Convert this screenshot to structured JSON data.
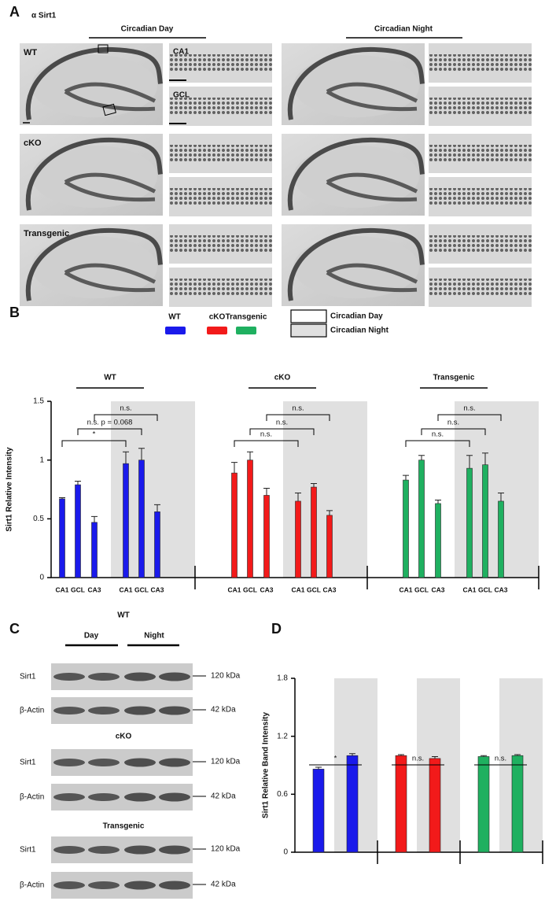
{
  "panel_labels": [
    "A",
    "B",
    "C",
    "D"
  ],
  "panel_a": {
    "stain": "α Sirt1",
    "conditions": [
      "Circadian Day",
      "Circadian Night"
    ],
    "genotypes": [
      "WT",
      "cKO",
      "Transgenic"
    ],
    "regions": [
      "CA1",
      "GCL"
    ]
  },
  "panel_c": {
    "conditions": [
      "Day",
      "Night"
    ],
    "groups": [
      {
        "genotype": "WT",
        "blots": [
          {
            "protein": "Sirt1",
            "size": "120 kDa"
          },
          {
            "protein": "β-Actin",
            "size": "42 kDa"
          }
        ]
      },
      {
        "genotype": "cKO",
        "blots": [
          {
            "protein": "Sirt1",
            "size": "120 kDa"
          },
          {
            "protein": "β-Actin",
            "size": "42 kDa"
          }
        ]
      },
      {
        "genotype": "Transgenic",
        "blots": [
          {
            "protein": "Sirt1",
            "size": "120 kDa"
          },
          {
            "protein": "β-Actin",
            "size": "42 kDa"
          }
        ]
      }
    ]
  },
  "chart_data": [
    {
      "type": "bar",
      "ylabel": "Sirt1 Relative Intensity",
      "categories": [
        "CA1",
        "GCL",
        "CA3",
        "CA1",
        "GCL",
        "CA3"
      ],
      "shading_legend": [
        "Circadian Day",
        "Circadian Night"
      ],
      "series": [
        {
          "name": "WT",
          "color": "#1a1aeb",
          "values": [
            0.67,
            0.79,
            0.47,
            0.97,
            1.0,
            0.56
          ],
          "errors": [
            0.01,
            0.03,
            0.05,
            0.1,
            0.1,
            0.06
          ],
          "annotations": [
            "*",
            "n.s. p = 0.068",
            "n.s."
          ]
        },
        {
          "name": "cKO",
          "color": "#f21a1a",
          "values": [
            0.89,
            1.0,
            0.7,
            0.65,
            0.77,
            0.53
          ],
          "errors": [
            0.09,
            0.07,
            0.06,
            0.07,
            0.03,
            0.04
          ],
          "annotations": [
            "n.s.",
            "n.s.",
            "n.s."
          ]
        },
        {
          "name": "Transgenic",
          "color": "#1fb060",
          "values": [
            0.83,
            1.0,
            0.63,
            0.93,
            0.96,
            0.65
          ],
          "errors": [
            0.04,
            0.04,
            0.03,
            0.11,
            0.1,
            0.07
          ],
          "annotations": [
            "n.s.",
            "n.s.",
            "n.s."
          ]
        }
      ],
      "ylim": [
        0,
        1.5
      ],
      "yticks": [
        0,
        0.5,
        1,
        1.5
      ]
    },
    {
      "type": "bar",
      "ylabel": "Sirt1 Relative Band Intensity",
      "series": [
        {
          "color": "#1a1aeb",
          "values": [
            0.86,
            1.0
          ],
          "errors": [
            0.02,
            0.02
          ],
          "annotations": [
            "*"
          ]
        },
        {
          "color": "#f21a1a",
          "values": [
            1.0,
            0.97
          ],
          "errors": [
            0.01,
            0.02
          ],
          "annotations": [
            "n.s."
          ]
        },
        {
          "color": "#1fb060",
          "values": [
            0.99,
            1.0
          ],
          "errors": [
            0.01,
            0.01
          ],
          "annotations": [
            "n.s."
          ]
        }
      ],
      "ylim": [
        0,
        1.8
      ],
      "yticks": [
        0,
        0.6,
        1.2,
        1.8
      ]
    }
  ]
}
